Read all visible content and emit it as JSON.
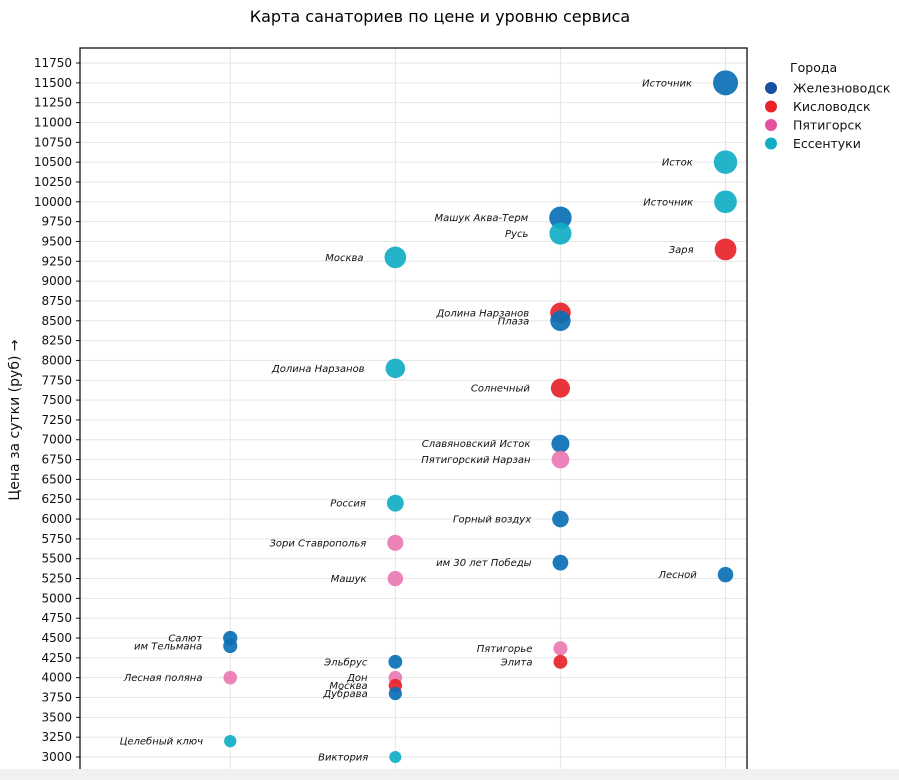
{
  "chart_data": {
    "type": "scatter",
    "title": "Карта санаториев по цене и уровню сервиса",
    "xlabel": "",
    "ylabel": "Цена за сутки (руб) →",
    "ylim": [
      2861,
      11939
    ],
    "xlim": [
      0.09,
      4.13
    ],
    "yticks": [
      3000,
      3250,
      3500,
      3750,
      4000,
      4250,
      4500,
      4750,
      5000,
      5250,
      5500,
      5750,
      6000,
      6250,
      6500,
      6750,
      7000,
      7250,
      7500,
      7750,
      8000,
      8250,
      8500,
      8750,
      9000,
      9250,
      9500,
      9750,
      10000,
      10250,
      10500,
      10750,
      11000,
      11250,
      11500,
      11750
    ],
    "xticks": [
      1,
      2,
      3,
      4
    ],
    "grid": true,
    "legend": {
      "title": "Города",
      "placement": "outside-right",
      "entries": [
        {
          "name": "Железноводск",
          "color": "#16509e",
          "point_color": "#0a6fb5"
        },
        {
          "name": "Кисловодск",
          "color": "#e8232b",
          "point_color": "#e8232b"
        },
        {
          "name": "Пятигорск",
          "color": "#e4519f",
          "point_color": "#ea7ab3"
        },
        {
          "name": "Ессентуки",
          "color": "#10aec4",
          "point_color": "#10aec4"
        }
      ]
    },
    "points": [
      {
        "name": "Салют",
        "x": 1,
        "y": 4500,
        "city": 0
      },
      {
        "name": "им Тельмана",
        "x": 1,
        "y": 4400,
        "city": 0
      },
      {
        "name": "Лесная поляна",
        "x": 1,
        "y": 4000,
        "city": 2
      },
      {
        "name": "Целебный ключ",
        "x": 1,
        "y": 3200,
        "city": 3
      },
      {
        "name": "Москва",
        "x": 2,
        "y": 9300,
        "city": 3
      },
      {
        "name": "Долина Нарзанов",
        "x": 2,
        "y": 7900,
        "city": 3
      },
      {
        "name": "Россия",
        "x": 2,
        "y": 6200,
        "city": 3
      },
      {
        "name": "Зори Ставрополья",
        "x": 2,
        "y": 5700,
        "city": 2
      },
      {
        "name": "Машук",
        "x": 2,
        "y": 5250,
        "city": 2
      },
      {
        "name": "Эльбрус",
        "x": 2,
        "y": 4200,
        "city": 0
      },
      {
        "name": "Дон",
        "x": 2,
        "y": 4000,
        "city": 2
      },
      {
        "name": "Москва",
        "x": 2,
        "y": 3900,
        "city": 1
      },
      {
        "name": "Дубрава",
        "x": 2,
        "y": 3800,
        "city": 0
      },
      {
        "name": "Виктория",
        "x": 2,
        "y": 3000,
        "city": 3
      },
      {
        "name": "Машук Аква-Терм",
        "x": 3,
        "y": 9800,
        "city": 0
      },
      {
        "name": "Русь",
        "x": 3,
        "y": 9600,
        "city": 3
      },
      {
        "name": "Долина Нарзанов",
        "x": 3,
        "y": 8600,
        "city": 1
      },
      {
        "name": "Плаза",
        "x": 3,
        "y": 8500,
        "city": 0
      },
      {
        "name": "Солнечный",
        "x": 3,
        "y": 7650,
        "city": 1
      },
      {
        "name": "Славяновский Исток",
        "x": 3,
        "y": 6950,
        "city": 0
      },
      {
        "name": "Пятигорский Нарзан",
        "x": 3,
        "y": 6750,
        "city": 2
      },
      {
        "name": "Горный воздух",
        "x": 3,
        "y": 6000,
        "city": 0
      },
      {
        "name": "им 30 лет Победы",
        "x": 3,
        "y": 5450,
        "city": 0
      },
      {
        "name": "Пятигорье",
        "x": 3,
        "y": 4370,
        "city": 2
      },
      {
        "name": "Элита",
        "x": 3,
        "y": 4200,
        "city": 1
      },
      {
        "name": "Источник",
        "x": 4,
        "y": 11500,
        "city": 0
      },
      {
        "name": "Исток",
        "x": 4,
        "y": 10500,
        "city": 3
      },
      {
        "name": "Источник",
        "x": 4,
        "y": 10000,
        "city": 3
      },
      {
        "name": "Заря",
        "x": 4,
        "y": 9400,
        "city": 1
      },
      {
        "name": "Лесной",
        "x": 4,
        "y": 5300,
        "city": 0
      }
    ]
  }
}
